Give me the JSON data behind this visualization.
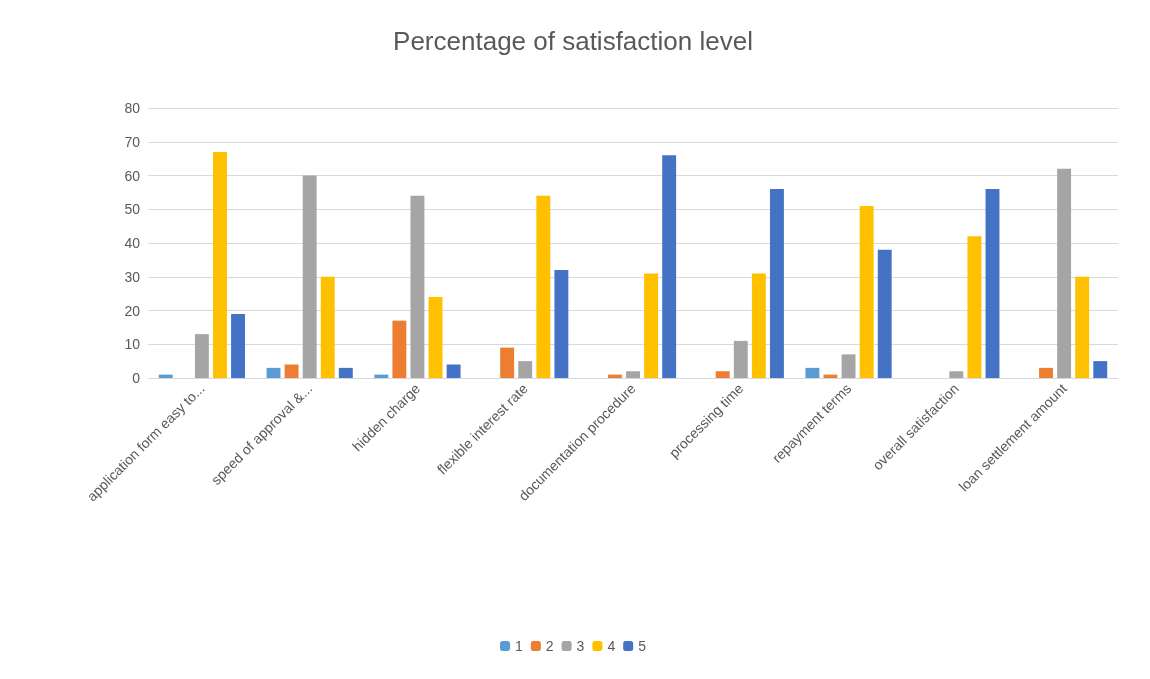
{
  "chart_data": {
    "type": "bar",
    "title": "Percentage of satisfaction level",
    "categories": [
      "application form easy to...",
      "speed of approval &...",
      "hidden charge",
      "flexible interest rate",
      "documentation procedure",
      "processing time",
      "repayment terms",
      "overall satisfaction",
      "loan settlement amount"
    ],
    "series": [
      {
        "name": "1",
        "color": "#5b9bd5",
        "values": [
          1,
          3,
          1,
          0,
          0,
          0,
          3,
          0,
          0
        ]
      },
      {
        "name": "2",
        "color": "#ed7d31",
        "values": [
          0,
          4,
          17,
          9,
          1,
          2,
          1,
          0,
          3
        ]
      },
      {
        "name": "3",
        "color": "#a5a5a5",
        "values": [
          13,
          60,
          54,
          5,
          2,
          11,
          7,
          2,
          62
        ]
      },
      {
        "name": "4",
        "color": "#ffc000",
        "values": [
          67,
          30,
          24,
          54,
          31,
          31,
          51,
          42,
          30
        ]
      },
      {
        "name": "5",
        "color": "#4472c4",
        "values": [
          19,
          3,
          4,
          32,
          66,
          56,
          38,
          56,
          5
        ]
      }
    ],
    "ylim": [
      0,
      80
    ],
    "yticks": [
      0,
      10,
      20,
      30,
      40,
      50,
      60,
      70,
      80
    ],
    "grid": "y",
    "legend": "bottom"
  }
}
